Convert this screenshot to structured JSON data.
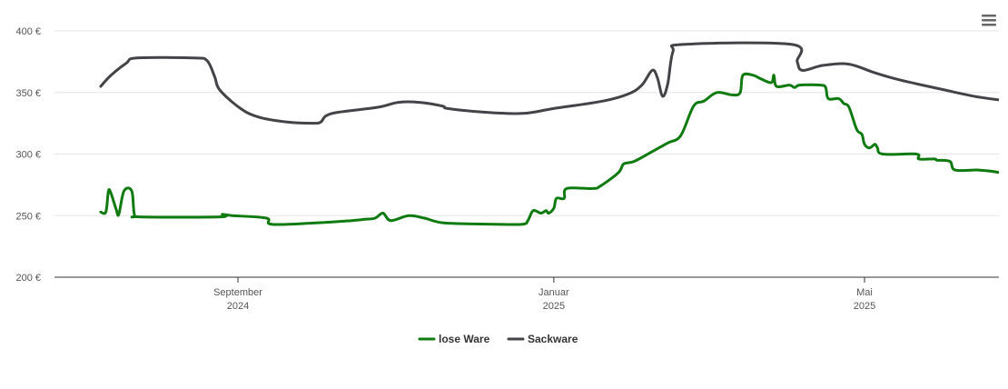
{
  "chart_data": {
    "type": "line",
    "title": "",
    "xlabel": "",
    "ylabel": "",
    "ylim": [
      200,
      400
    ],
    "y_ticks": [
      "400 €",
      "350 €",
      "300 €",
      "250 €",
      "200 €"
    ],
    "y_tick_values": [
      400,
      350,
      300,
      250,
      200
    ],
    "x_range": [
      "2024-07-10",
      "2025-06-30"
    ],
    "x_ticks": [
      {
        "date": "2024-09-01",
        "line1": "September",
        "line2": "2024"
      },
      {
        "date": "2025-01-01",
        "line1": "Januar",
        "line2": "2025"
      },
      {
        "date": "2025-05-01",
        "line1": "Mai",
        "line2": "2025"
      }
    ],
    "grid": true,
    "legend_position": "bottom-center",
    "series": [
      {
        "name": "lose Ware",
        "color": "#0f7a0f",
        "points": [
          [
            "2024-07-10",
            253
          ],
          [
            "2024-07-12",
            253
          ],
          [
            "2024-07-13",
            270
          ],
          [
            "2024-07-14",
            268
          ],
          [
            "2024-07-16",
            255
          ],
          [
            "2024-07-17",
            251
          ],
          [
            "2024-07-19",
            270
          ],
          [
            "2024-07-22",
            270
          ],
          [
            "2024-07-23",
            251
          ],
          [
            "2024-07-25",
            249
          ],
          [
            "2024-08-25",
            249
          ],
          [
            "2024-08-26",
            251
          ],
          [
            "2024-08-30",
            250
          ],
          [
            "2024-09-12",
            248
          ],
          [
            "2024-09-14",
            243
          ],
          [
            "2024-09-30",
            244
          ],
          [
            "2024-10-15",
            246
          ],
          [
            "2024-10-20",
            247
          ],
          [
            "2024-10-24",
            248
          ],
          [
            "2024-10-27",
            252
          ],
          [
            "2024-10-30",
            246
          ],
          [
            "2024-11-06",
            250
          ],
          [
            "2024-11-12",
            248
          ],
          [
            "2024-11-20",
            244
          ],
          [
            "2024-12-10",
            243
          ],
          [
            "2024-12-20",
            243
          ],
          [
            "2024-12-22",
            246
          ],
          [
            "2024-12-24",
            254
          ],
          [
            "2024-12-27",
            252
          ],
          [
            "2024-12-29",
            254
          ],
          [
            "2024-12-30",
            252
          ],
          [
            "2025-01-01",
            256
          ],
          [
            "2025-01-02",
            264
          ],
          [
            "2025-01-05",
            264
          ],
          [
            "2025-01-06",
            272
          ],
          [
            "2025-01-16",
            272
          ],
          [
            "2025-01-19",
            274
          ],
          [
            "2025-01-26",
            285
          ],
          [
            "2025-01-28",
            292
          ],
          [
            "2025-02-01",
            294
          ],
          [
            "2025-02-08",
            302
          ],
          [
            "2025-02-14",
            309
          ],
          [
            "2025-02-19",
            315
          ],
          [
            "2025-02-24",
            339
          ],
          [
            "2025-02-28",
            343
          ],
          [
            "2025-03-05",
            350
          ],
          [
            "2025-03-11",
            348
          ],
          [
            "2025-03-14",
            350
          ],
          [
            "2025-03-15",
            364
          ],
          [
            "2025-03-19",
            364
          ],
          [
            "2025-03-22",
            361
          ],
          [
            "2025-03-26",
            358
          ],
          [
            "2025-03-27",
            364
          ],
          [
            "2025-03-28",
            355
          ],
          [
            "2025-04-02",
            356
          ],
          [
            "2025-04-04",
            354
          ],
          [
            "2025-04-06",
            356
          ],
          [
            "2025-04-14",
            356
          ],
          [
            "2025-04-16",
            354
          ],
          [
            "2025-04-17",
            345
          ],
          [
            "2025-04-21",
            345
          ],
          [
            "2025-04-23",
            341
          ],
          [
            "2025-04-25",
            338
          ],
          [
            "2025-04-28",
            320
          ],
          [
            "2025-04-30",
            316
          ],
          [
            "2025-05-01",
            308
          ],
          [
            "2025-05-03",
            305
          ],
          [
            "2025-05-05",
            308
          ],
          [
            "2025-05-06",
            305
          ],
          [
            "2025-05-08",
            300
          ],
          [
            "2025-05-21",
            300
          ],
          [
            "2025-05-22",
            296
          ],
          [
            "2025-05-28",
            296
          ],
          [
            "2025-05-29",
            295
          ],
          [
            "2025-06-03",
            294
          ],
          [
            "2025-06-05",
            287
          ],
          [
            "2025-06-14",
            287
          ],
          [
            "2025-06-22",
            285
          ],
          [
            "2025-06-28",
            281
          ],
          [
            "2025-07-02",
            279
          ],
          [
            "2025-07-06",
            279
          ]
        ]
      },
      {
        "name": "Sackware",
        "color": "#434348",
        "points": [
          [
            "2024-07-10",
            355
          ],
          [
            "2024-07-14",
            364
          ],
          [
            "2024-07-20",
            374
          ],
          [
            "2024-07-24",
            378
          ],
          [
            "2024-08-15",
            378
          ],
          [
            "2024-08-20",
            376
          ],
          [
            "2024-08-23",
            363
          ],
          [
            "2024-08-25",
            352
          ],
          [
            "2024-09-02",
            337
          ],
          [
            "2024-09-09",
            330
          ],
          [
            "2024-09-20",
            326
          ],
          [
            "2024-09-30",
            325
          ],
          [
            "2024-10-03",
            326
          ],
          [
            "2024-10-05",
            331
          ],
          [
            "2024-10-10",
            334
          ],
          [
            "2024-10-25",
            338
          ],
          [
            "2024-11-02",
            342
          ],
          [
            "2024-11-10",
            342
          ],
          [
            "2024-11-19",
            339
          ],
          [
            "2024-11-21",
            337
          ],
          [
            "2024-12-05",
            334
          ],
          [
            "2024-12-20",
            333
          ],
          [
            "2025-01-01",
            337
          ],
          [
            "2025-01-20",
            343
          ],
          [
            "2025-01-30",
            349
          ],
          [
            "2025-02-04",
            356
          ],
          [
            "2025-02-08",
            368
          ],
          [
            "2025-02-10",
            362
          ],
          [
            "2025-02-12",
            347
          ],
          [
            "2025-02-14",
            357
          ],
          [
            "2025-02-16",
            383
          ],
          [
            "2025-02-20",
            389
          ],
          [
            "2025-04-03",
            389
          ],
          [
            "2025-04-05",
            375
          ],
          [
            "2025-04-07",
            368
          ],
          [
            "2025-04-15",
            372
          ],
          [
            "2025-04-25",
            373
          ],
          [
            "2025-05-05",
            366
          ],
          [
            "2025-05-15",
            360
          ],
          [
            "2025-06-01",
            352
          ],
          [
            "2025-06-15",
            346
          ],
          [
            "2025-07-01",
            342
          ],
          [
            "2025-07-06",
            342
          ]
        ]
      }
    ]
  },
  "menu": {
    "icon": "hamburger-menu-icon"
  }
}
